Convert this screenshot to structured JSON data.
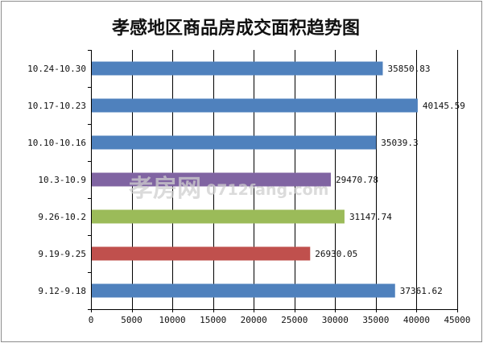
{
  "chart_data": {
    "type": "bar",
    "orientation": "horizontal",
    "title": "孝感地区商品房成交面积趋势图",
    "categories": [
      "10.24-10.30",
      "10.17-10.23",
      "10.10-10.16",
      "10.3-10.9",
      "9.26-10.2",
      "9.19-9.25",
      "9.12-9.18"
    ],
    "values": [
      35850.83,
      40145.59,
      35039.3,
      29470.78,
      31147.74,
      26930.05,
      37361.62
    ],
    "value_labels": [
      "35850.83",
      "40145.59",
      "35039.3",
      "29470.78",
      "31147.74",
      "26930.05",
      "37361.62"
    ],
    "bar_colors": [
      "#4f81bd",
      "#4f81bd",
      "#4f81bd",
      "#8064a2",
      "#9bbb59",
      "#c0504d",
      "#4f81bd"
    ],
    "xlim": [
      0,
      45000
    ],
    "xticks": [
      0,
      5000,
      10000,
      15000,
      20000,
      25000,
      30000,
      35000,
      40000,
      45000
    ],
    "xlabel": "",
    "ylabel": "",
    "grid": "vertical",
    "legend": "none"
  },
  "watermark": {
    "logo_text": "孝房网",
    "site_text": "0712fang.com"
  }
}
